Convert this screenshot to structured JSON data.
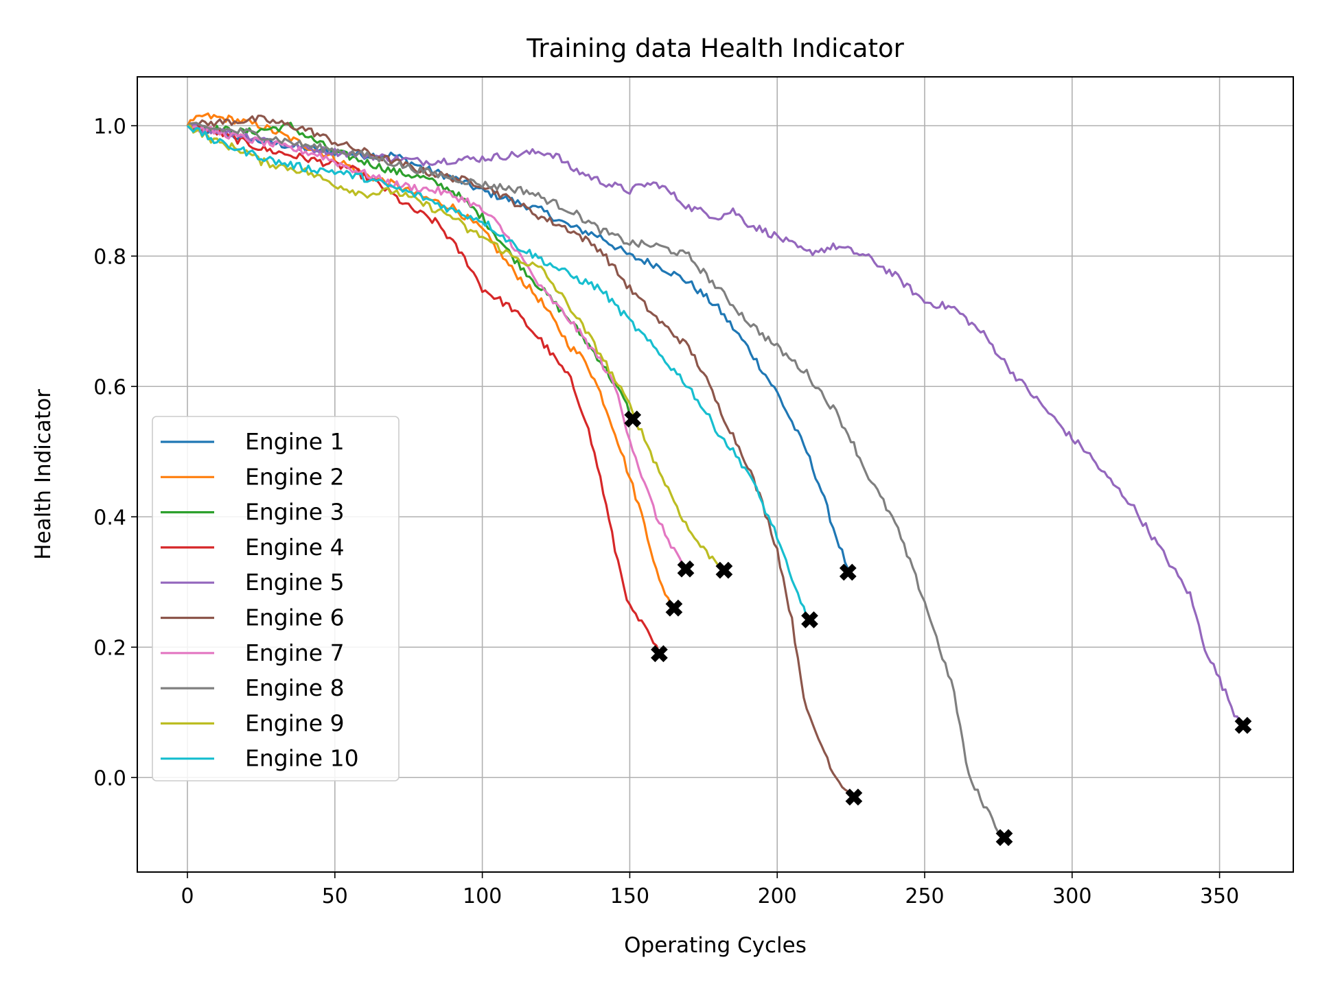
{
  "chart_data": {
    "type": "line",
    "title": "Training data Health Indicator",
    "xlabel": "Operating Cycles",
    "ylabel": "Health Indicator",
    "xlim": [
      -17,
      375
    ],
    "ylim": [
      -0.145,
      1.075
    ],
    "xticks": [
      0,
      50,
      100,
      150,
      200,
      250,
      300,
      350
    ],
    "xtick_labels": [
      "0",
      "50",
      "100",
      "150",
      "200",
      "250",
      "300",
      "350"
    ],
    "yticks": [
      0.0,
      0.2,
      0.4,
      0.6,
      0.8,
      1.0
    ],
    "ytick_labels": [
      "0.0",
      "0.2",
      "0.4",
      "0.6",
      "0.8",
      "1.0"
    ],
    "grid": true,
    "legend_position": "lower-left",
    "end_marker": "X",
    "end_marker_color": "#000000",
    "series": [
      {
        "name": "Engine 1",
        "color": "#1f77b4",
        "points": [
          [
            0,
            1.0
          ],
          [
            20,
            0.98
          ],
          [
            40,
            0.965
          ],
          [
            60,
            0.955
          ],
          [
            70,
            0.955
          ],
          [
            80,
            0.935
          ],
          [
            90,
            0.92
          ],
          [
            100,
            0.9
          ],
          [
            110,
            0.885
          ],
          [
            120,
            0.87
          ],
          [
            130,
            0.845
          ],
          [
            140,
            0.83
          ],
          [
            150,
            0.8
          ],
          [
            160,
            0.785
          ],
          [
            170,
            0.76
          ],
          [
            180,
            0.72
          ],
          [
            190,
            0.66
          ],
          [
            200,
            0.59
          ],
          [
            210,
            0.5
          ],
          [
            215,
            0.44
          ],
          [
            220,
            0.37
          ],
          [
            224,
            0.32
          ]
        ],
        "end": [
          224,
          0.315
        ]
      },
      {
        "name": "Engine 2",
        "color": "#ff7f0e",
        "points": [
          [
            0,
            1.0
          ],
          [
            5,
            1.015
          ],
          [
            15,
            1.01
          ],
          [
            25,
            1.0
          ],
          [
            40,
            0.97
          ],
          [
            50,
            0.95
          ],
          [
            60,
            0.925
          ],
          [
            70,
            0.91
          ],
          [
            80,
            0.89
          ],
          [
            90,
            0.875
          ],
          [
            100,
            0.84
          ],
          [
            110,
            0.78
          ],
          [
            120,
            0.73
          ],
          [
            130,
            0.66
          ],
          [
            135,
            0.64
          ],
          [
            140,
            0.59
          ],
          [
            145,
            0.53
          ],
          [
            150,
            0.46
          ],
          [
            155,
            0.39
          ],
          [
            160,
            0.3
          ],
          [
            165,
            0.26
          ]
        ],
        "end": [
          165,
          0.26
        ]
      },
      {
        "name": "Engine 3",
        "color": "#2ca02c",
        "points": [
          [
            0,
            1.0
          ],
          [
            20,
            0.99
          ],
          [
            35,
            1.0
          ],
          [
            40,
            0.985
          ],
          [
            50,
            0.96
          ],
          [
            60,
            0.945
          ],
          [
            70,
            0.93
          ],
          [
            80,
            0.92
          ],
          [
            90,
            0.9
          ],
          [
            100,
            0.86
          ],
          [
            110,
            0.8
          ],
          [
            120,
            0.75
          ],
          [
            130,
            0.7
          ],
          [
            140,
            0.64
          ],
          [
            148,
            0.58
          ],
          [
            151,
            0.55
          ]
        ],
        "end": [
          151,
          0.55
        ]
      },
      {
        "name": "Engine 4",
        "color": "#d62728",
        "points": [
          [
            0,
            1.0
          ],
          [
            10,
            0.99
          ],
          [
            25,
            0.965
          ],
          [
            40,
            0.95
          ],
          [
            55,
            0.935
          ],
          [
            65,
            0.91
          ],
          [
            75,
            0.875
          ],
          [
            85,
            0.85
          ],
          [
            90,
            0.82
          ],
          [
            95,
            0.79
          ],
          [
            100,
            0.75
          ],
          [
            110,
            0.72
          ],
          [
            120,
            0.67
          ],
          [
            130,
            0.61
          ],
          [
            135,
            0.55
          ],
          [
            140,
            0.46
          ],
          [
            145,
            0.35
          ],
          [
            150,
            0.26
          ],
          [
            155,
            0.23
          ],
          [
            160,
            0.19
          ]
        ],
        "end": [
          160,
          0.19
        ]
      },
      {
        "name": "Engine 5",
        "color": "#9467bd",
        "points": [
          [
            0,
            1.0
          ],
          [
            20,
            0.985
          ],
          [
            40,
            0.965
          ],
          [
            60,
            0.955
          ],
          [
            80,
            0.945
          ],
          [
            100,
            0.95
          ],
          [
            110,
            0.955
          ],
          [
            120,
            0.96
          ],
          [
            125,
            0.955
          ],
          [
            130,
            0.935
          ],
          [
            140,
            0.915
          ],
          [
            150,
            0.9
          ],
          [
            155,
            0.91
          ],
          [
            160,
            0.91
          ],
          [
            170,
            0.875
          ],
          [
            180,
            0.86
          ],
          [
            185,
            0.87
          ],
          [
            190,
            0.85
          ],
          [
            200,
            0.83
          ],
          [
            210,
            0.805
          ],
          [
            220,
            0.815
          ],
          [
            230,
            0.8
          ],
          [
            240,
            0.77
          ],
          [
            250,
            0.73
          ],
          [
            260,
            0.72
          ],
          [
            270,
            0.68
          ],
          [
            280,
            0.62
          ],
          [
            290,
            0.57
          ],
          [
            300,
            0.52
          ],
          [
            305,
            0.5
          ],
          [
            310,
            0.47
          ],
          [
            320,
            0.42
          ],
          [
            330,
            0.35
          ],
          [
            340,
            0.28
          ],
          [
            345,
            0.2
          ],
          [
            355,
            0.1
          ],
          [
            358,
            0.08
          ]
        ],
        "end": [
          358,
          0.08
        ]
      },
      {
        "name": "Engine 6",
        "color": "#8c564b",
        "points": [
          [
            0,
            1.0
          ],
          [
            10,
            1.005
          ],
          [
            25,
            1.01
          ],
          [
            40,
            0.995
          ],
          [
            50,
            0.975
          ],
          [
            60,
            0.96
          ],
          [
            70,
            0.945
          ],
          [
            80,
            0.93
          ],
          [
            90,
            0.92
          ],
          [
            100,
            0.91
          ],
          [
            110,
            0.885
          ],
          [
            120,
            0.86
          ],
          [
            130,
            0.84
          ],
          [
            140,
            0.81
          ],
          [
            150,
            0.75
          ],
          [
            160,
            0.7
          ],
          [
            170,
            0.66
          ],
          [
            175,
            0.62
          ],
          [
            180,
            0.57
          ],
          [
            190,
            0.48
          ],
          [
            195,
            0.42
          ],
          [
            200,
            0.35
          ],
          [
            205,
            0.24
          ],
          [
            210,
            0.1
          ],
          [
            215,
            0.05
          ],
          [
            220,
            0.0
          ],
          [
            226,
            -0.03
          ]
        ],
        "end": [
          226,
          -0.03
        ]
      },
      {
        "name": "Engine 7",
        "color": "#e377c2",
        "points": [
          [
            0,
            1.0
          ],
          [
            15,
            0.985
          ],
          [
            30,
            0.97
          ],
          [
            45,
            0.955
          ],
          [
            55,
            0.935
          ],
          [
            70,
            0.91
          ],
          [
            85,
            0.9
          ],
          [
            95,
            0.885
          ],
          [
            100,
            0.87
          ],
          [
            105,
            0.85
          ],
          [
            110,
            0.82
          ],
          [
            120,
            0.75
          ],
          [
            130,
            0.7
          ],
          [
            140,
            0.64
          ],
          [
            145,
            0.6
          ],
          [
            150,
            0.52
          ],
          [
            155,
            0.45
          ],
          [
            160,
            0.39
          ],
          [
            165,
            0.35
          ],
          [
            169,
            0.32
          ]
        ],
        "end": [
          169,
          0.32
        ]
      },
      {
        "name": "Engine 8",
        "color": "#7f7f7f",
        "points": [
          [
            0,
            1.0
          ],
          [
            20,
            0.99
          ],
          [
            40,
            0.97
          ],
          [
            60,
            0.955
          ],
          [
            80,
            0.93
          ],
          [
            100,
            0.91
          ],
          [
            115,
            0.9
          ],
          [
            120,
            0.89
          ],
          [
            130,
            0.87
          ],
          [
            140,
            0.84
          ],
          [
            150,
            0.82
          ],
          [
            160,
            0.815
          ],
          [
            170,
            0.8
          ],
          [
            180,
            0.75
          ],
          [
            190,
            0.7
          ],
          [
            200,
            0.66
          ],
          [
            210,
            0.62
          ],
          [
            220,
            0.56
          ],
          [
            225,
            0.52
          ],
          [
            230,
            0.47
          ],
          [
            240,
            0.39
          ],
          [
            250,
            0.27
          ],
          [
            255,
            0.2
          ],
          [
            260,
            0.13
          ],
          [
            265,
            0.0
          ],
          [
            270,
            -0.04
          ],
          [
            275,
            -0.08
          ],
          [
            277,
            -0.09
          ]
        ],
        "end": [
          277,
          -0.092
        ]
      },
      {
        "name": "Engine 9",
        "color": "#bcbd22",
        "points": [
          [
            0,
            1.0
          ],
          [
            10,
            0.975
          ],
          [
            20,
            0.96
          ],
          [
            25,
            0.945
          ],
          [
            40,
            0.93
          ],
          [
            50,
            0.91
          ],
          [
            60,
            0.895
          ],
          [
            70,
            0.9
          ],
          [
            80,
            0.88
          ],
          [
            90,
            0.86
          ],
          [
            95,
            0.84
          ],
          [
            100,
            0.83
          ],
          [
            110,
            0.8
          ],
          [
            120,
            0.78
          ],
          [
            130,
            0.72
          ],
          [
            140,
            0.65
          ],
          [
            150,
            0.57
          ],
          [
            160,
            0.47
          ],
          [
            170,
            0.38
          ],
          [
            175,
            0.35
          ],
          [
            182,
            0.32
          ]
        ],
        "end": [
          182,
          0.318
        ]
      },
      {
        "name": "Engine 10",
        "color": "#17becf",
        "points": [
          [
            0,
            1.0
          ],
          [
            10,
            0.975
          ],
          [
            20,
            0.96
          ],
          [
            30,
            0.945
          ],
          [
            40,
            0.935
          ],
          [
            50,
            0.93
          ],
          [
            60,
            0.92
          ],
          [
            70,
            0.905
          ],
          [
            80,
            0.89
          ],
          [
            90,
            0.87
          ],
          [
            100,
            0.855
          ],
          [
            110,
            0.82
          ],
          [
            120,
            0.795
          ],
          [
            130,
            0.77
          ],
          [
            140,
            0.75
          ],
          [
            150,
            0.7
          ],
          [
            160,
            0.65
          ],
          [
            170,
            0.6
          ],
          [
            180,
            0.53
          ],
          [
            190,
            0.47
          ],
          [
            200,
            0.37
          ],
          [
            205,
            0.3
          ],
          [
            211,
            0.24
          ]
        ],
        "end": [
          211,
          0.242
        ]
      }
    ]
  }
}
